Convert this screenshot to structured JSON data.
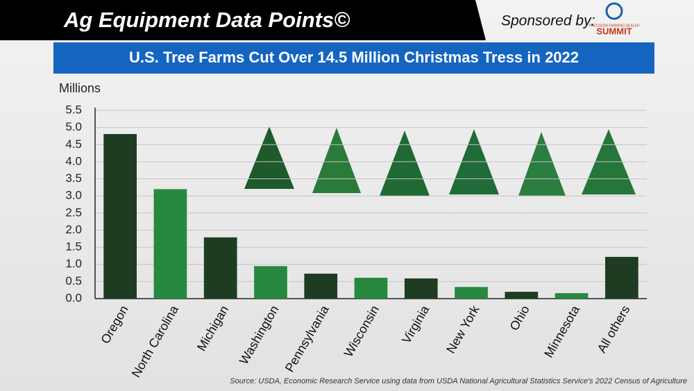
{
  "header": {
    "title": "Ag Equipment Data Points©",
    "sponsor": "Sponsored by:",
    "logo_tagline": "PRECISION FARMING DEALER",
    "logo_name": "SUMMIT"
  },
  "chart_data": {
    "type": "bar",
    "title": "U.S. Tree Farms Cut Over 14.5 Million Christmas Tress in 2022",
    "y_label": "Millions",
    "source": "Source: USDA, Economic Research Service using data from USDA National Agricultural Statistics Service's 2022 Census of Agriculture",
    "categories": [
      "Oregon",
      "North Carolina",
      "Michigan",
      "Washington",
      "Pennsylvania",
      "Wisconsin",
      "Virginia",
      "New York",
      "Ohio",
      "Minnesota",
      "All others"
    ],
    "values": [
      4.81,
      3.2,
      1.79,
      0.95,
      0.73,
      0.61,
      0.59,
      0.34,
      0.2,
      0.16,
      1.22
    ],
    "colors": [
      "#1e3c22",
      "#27893f",
      "#1e3c22",
      "#27893f",
      "#1e3c22",
      "#27893f",
      "#1e3c22",
      "#27893f",
      "#1e3c22",
      "#27893f",
      "#1e3c22"
    ],
    "ylim": [
      0,
      5.5
    ],
    "yticks": [
      {
        "value": 0,
        "label": "0.0"
      },
      0.5,
      {
        "value": 1,
        "label": "1.0"
      },
      1.5,
      {
        "value": 2,
        "label": "2.0"
      },
      2.5,
      {
        "value": 3,
        "label": "3.0"
      },
      3.5,
      {
        "value": 4,
        "label": "4.0"
      },
      4.5,
      {
        "value": 5,
        "label": "5.0"
      },
      5.5
    ],
    "grid": true
  }
}
